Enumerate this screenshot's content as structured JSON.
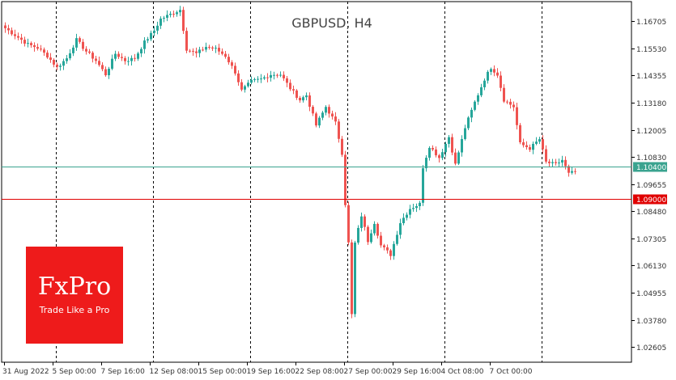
{
  "chart_data": {
    "type": "candlestick",
    "title": "GBPUSD, H4",
    "ylim": [
      1.0195,
      1.1755
    ],
    "y_ticks": [
      "1.16705",
      "1.15530",
      "1.14355",
      "1.13180",
      "1.12005",
      "1.10830",
      "1.09655",
      "1.08480",
      "1.07305",
      "1.06130",
      "1.04955",
      "1.03780",
      "1.02605"
    ],
    "x_ticks": [
      "31 Aug 2022",
      "5 Sep 00:00",
      "7 Sep 16:00",
      "12 Sep 08:00",
      "15 Sep 00:00",
      "19 Sep 16:00",
      "22 Sep 08:00",
      "27 Sep 00:00",
      "29 Sep 16:00",
      "4 Oct 08:00",
      "7 Oct 00:00"
    ],
    "period_separator_bars": [
      16,
      46,
      76,
      106,
      136,
      166
    ],
    "lines": [
      {
        "name": "current",
        "value": 1.104,
        "label": "1.10400",
        "color": "#3aa38f"
      },
      {
        "name": "level",
        "value": 1.09,
        "label": "1.09000",
        "color": "#e00000"
      }
    ],
    "colors": {
      "up": "#26a69a",
      "down": "#ef5350",
      "grid": "#000000"
    },
    "waypoints": [
      [
        0,
        1.164
      ],
      [
        3,
        1.161
      ],
      [
        7,
        1.157
      ],
      [
        10,
        1.1555
      ],
      [
        13,
        1.152
      ],
      [
        16,
        1.147
      ],
      [
        19,
        1.151
      ],
      [
        22,
        1.159
      ],
      [
        25,
        1.154
      ],
      [
        28,
        1.15
      ],
      [
        31,
        1.144
      ],
      [
        34,
        1.153
      ],
      [
        37,
        1.15
      ],
      [
        40,
        1.151
      ],
      [
        43,
        1.158
      ],
      [
        46,
        1.163
      ],
      [
        48,
        1.168
      ],
      [
        51,
        1.17
      ],
      [
        54,
        1.172
      ],
      [
        56,
        1.155
      ],
      [
        59,
        1.153
      ],
      [
        62,
        1.156
      ],
      [
        65,
        1.155
      ],
      [
        68,
        1.152
      ],
      [
        71,
        1.145
      ],
      [
        73,
        1.137
      ],
      [
        76,
        1.141
      ],
      [
        79,
        1.142
      ],
      [
        82,
        1.144
      ],
      [
        85,
        1.144
      ],
      [
        88,
        1.138
      ],
      [
        91,
        1.133
      ],
      [
        93,
        1.135
      ],
      [
        96,
        1.122
      ],
      [
        99,
        1.13
      ],
      [
        102,
        1.123
      ],
      [
        104,
        1.11
      ],
      [
        105,
        1.088
      ],
      [
        106,
        1.071
      ],
      [
        107,
        1.04
      ],
      [
        108,
        1.071
      ],
      [
        110,
        1.083
      ],
      [
        112,
        1.072
      ],
      [
        114,
        1.08
      ],
      [
        116,
        1.07
      ],
      [
        119,
        1.066
      ],
      [
        122,
        1.08
      ],
      [
        125,
        1.086
      ],
      [
        128,
        1.088
      ],
      [
        129,
        1.104
      ],
      [
        131,
        1.113
      ],
      [
        134,
        1.108
      ],
      [
        137,
        1.117
      ],
      [
        139,
        1.105
      ],
      [
        142,
        1.121
      ],
      [
        145,
        1.132
      ],
      [
        148,
        1.142
      ],
      [
        150,
        1.147
      ],
      [
        152,
        1.144
      ],
      [
        154,
        1.133
      ],
      [
        157,
        1.13
      ],
      [
        159,
        1.114
      ],
      [
        162,
        1.112
      ],
      [
        165,
        1.116
      ],
      [
        167,
        1.106
      ],
      [
        170,
        1.105
      ],
      [
        172,
        1.107
      ],
      [
        174,
        1.101
      ],
      [
        176,
        1.102
      ]
    ]
  },
  "logo": {
    "name": "FxPro",
    "tagline": "Trade Like a Pro"
  }
}
